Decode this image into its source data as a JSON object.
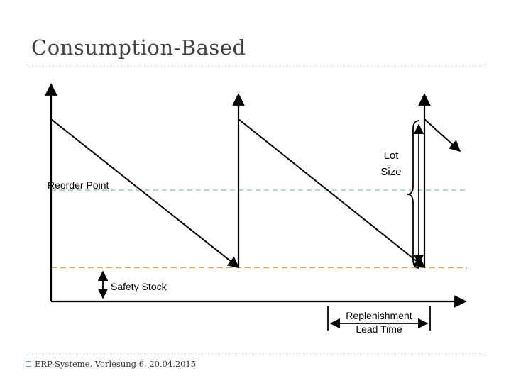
{
  "slide": {
    "title": "Consumption-Based",
    "footer": "ERP-Systeme, Vorlesung 6, 20.04.2015"
  },
  "diagram": {
    "labels": {
      "reorder_point": "Reorder Point",
      "safety_stock": "Safety Stock",
      "lot_size_line1": "Lot",
      "lot_size_line2": "Size",
      "lead_time_line1": "Replenishment",
      "lead_time_line2": "Lead Time"
    },
    "colors": {
      "reorder_line": "#9ec9c0",
      "safety_line": "#e0a23a",
      "stroke": "#000000",
      "title": "#3f3f3f"
    }
  }
}
